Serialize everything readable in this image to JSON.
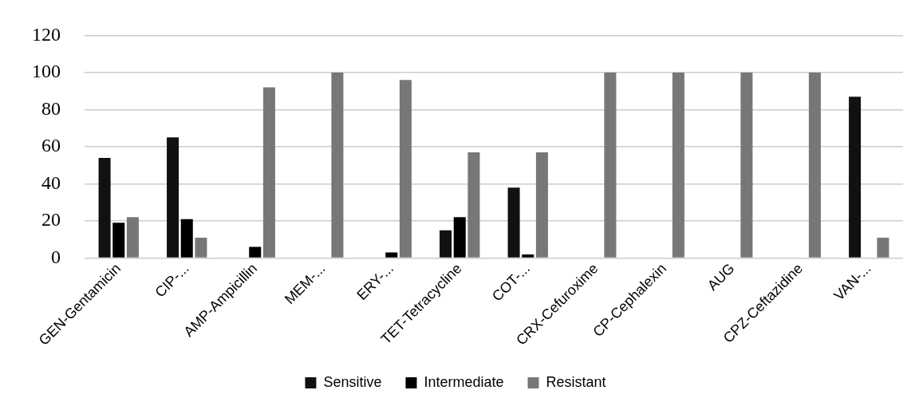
{
  "chart_data": {
    "type": "bar",
    "categories": [
      "GEN-Gentamicin",
      "CIP-...",
      "AMP-Ampicillin",
      "MEM-...",
      "ERY-...",
      "TET-Tetracycline",
      "COT-...",
      "CRX-Cefuroxime",
      "CP-Cephalexin",
      "AUG",
      "CPZ-Ceftazidine",
      "VAN-..."
    ],
    "series": [
      {
        "name": "Sensitive",
        "color": "#111111",
        "values": [
          54,
          65,
          null,
          null,
          null,
          15,
          38,
          null,
          null,
          null,
          null,
          87
        ]
      },
      {
        "name": "Intermediate",
        "color": "#000000",
        "values": [
          19,
          21,
          6,
          null,
          3,
          22,
          2,
          null,
          null,
          null,
          null,
          null
        ]
      },
      {
        "name": "Resistant",
        "color": "#777777",
        "values": [
          22,
          11,
          92,
          100,
          96,
          57,
          57,
          100,
          100,
          100,
          100,
          11
        ]
      }
    ],
    "ylim": [
      0,
      120
    ],
    "yticks": [
      0,
      20,
      40,
      60,
      80,
      100,
      120
    ],
    "grid": "y",
    "legend": "bottom"
  }
}
